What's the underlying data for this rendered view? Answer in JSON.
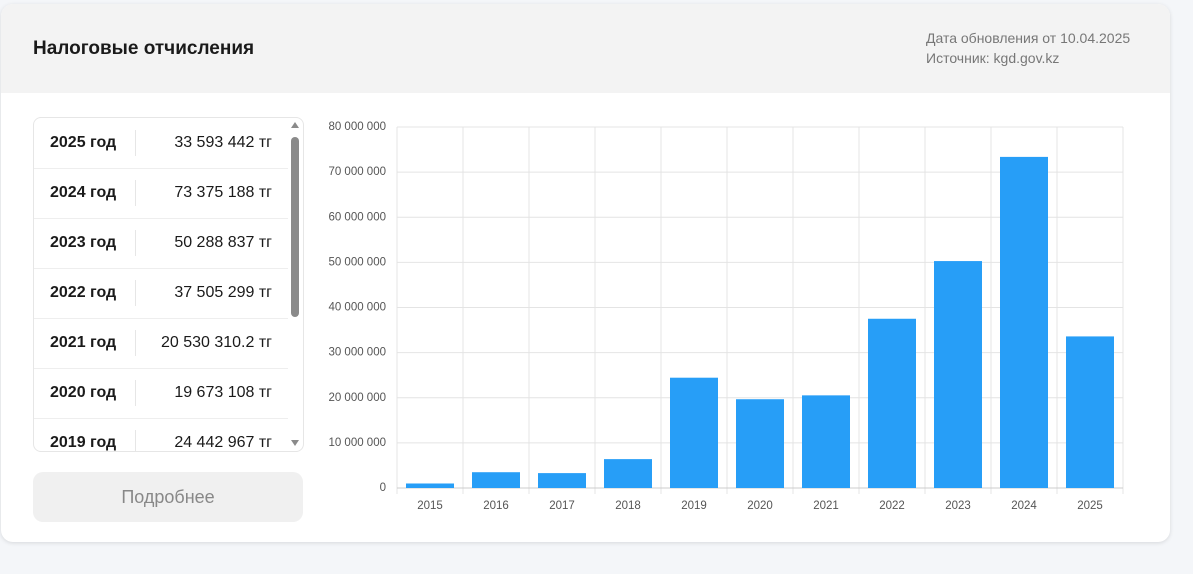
{
  "header": {
    "title": "Налоговые отчисления",
    "updated": "Дата обновления от 10.04.2025",
    "source": "Источник: kgd.gov.kz"
  },
  "table": {
    "rows": [
      [
        "2025 год",
        "33 593 442 тг"
      ],
      [
        "2024 год",
        "73 375 188 тг"
      ],
      [
        "2023 год",
        "50 288 837 тг"
      ],
      [
        "2022 год",
        "37 505 299 тг"
      ],
      [
        "2021 год",
        "20 530 310.2 тг"
      ],
      [
        "2020 год",
        "19 673 108 тг"
      ],
      [
        "2019 год",
        "24 442 967 тг"
      ]
    ]
  },
  "button": {
    "label": "Подробнее"
  },
  "chart_data": {
    "type": "bar",
    "categories": [
      "2015",
      "2016",
      "2017",
      "2018",
      "2019",
      "2020",
      "2021",
      "2022",
      "2023",
      "2024",
      "2025"
    ],
    "values": [
      1000000,
      3500000,
      3300000,
      6400000,
      24442967,
      19673108,
      20530310.2,
      37505299,
      50288837,
      73375188,
      33593442
    ],
    "color": "#279ef7",
    "ylim": [
      0,
      80000000
    ],
    "yticks": [
      {
        "value": 0,
        "label": "0"
      },
      {
        "value": 10000000,
        "label": "10 000 000"
      },
      {
        "value": 20000000,
        "label": "20 000 000"
      },
      {
        "value": 30000000,
        "label": "30 000 000"
      },
      {
        "value": 40000000,
        "label": "40 000 000"
      },
      {
        "value": 50000000,
        "label": "50 000 000"
      },
      {
        "value": 60000000,
        "label": "60 000 000"
      },
      {
        "value": 70000000,
        "label": "70 000 000"
      },
      {
        "value": 80000000,
        "label": "80 000 000"
      }
    ],
    "grid": true
  }
}
